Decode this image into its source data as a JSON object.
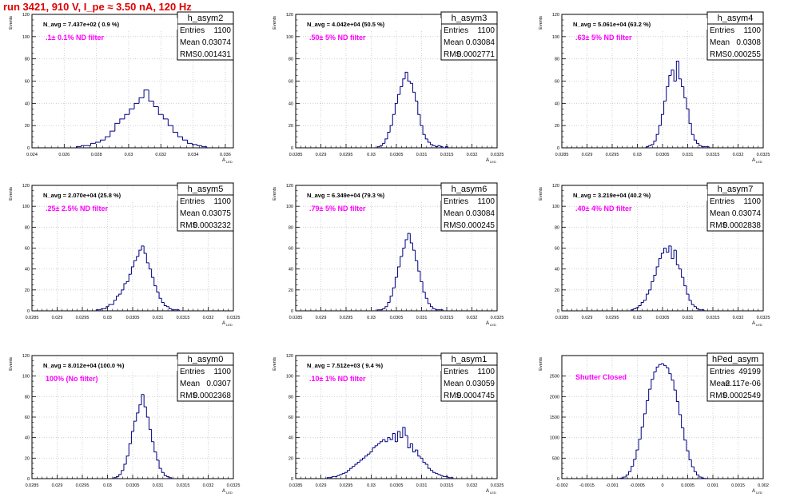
{
  "title": "run 3421,   910 V, I_pe ≈ 3.50 nA, 120 Hz",
  "colors": {
    "hist": "#000080",
    "title": "#e00000",
    "filter_text": "#ff00ff",
    "grid": "#c8c8c8"
  },
  "chart_data": [
    {
      "type": "bar",
      "name": "h_asym2",
      "nav": "N_avg = 7.437e+02 ( 0.9 %)",
      "filter": ".1± 0.1% ND filter",
      "stats": {
        "entries": "1100",
        "mean": "0.03074",
        "rms": "0.001431"
      },
      "xlabel": "A_LED",
      "ylabel": "Events",
      "xlim": [
        0.024,
        0.0365
      ],
      "ylim": [
        0,
        120
      ],
      "xticks": [
        0.024,
        0.026,
        0.028,
        0.03,
        0.032,
        0.034,
        0.036
      ],
      "xtick_labels": [
        "0.024",
        "0.026",
        "0.028",
        "0.03",
        "0.032",
        "0.034",
        "0.036"
      ],
      "yticks": [
        0,
        20,
        40,
        60,
        80,
        100,
        120
      ],
      "x": [
        0.0269,
        0.0272,
        0.0275,
        0.0278,
        0.0281,
        0.0284,
        0.0287,
        0.029,
        0.0293,
        0.0296,
        0.0299,
        0.0302,
        0.0305,
        0.0308,
        0.0311,
        0.0314,
        0.0317,
        0.032,
        0.0323,
        0.0326,
        0.0329,
        0.0332,
        0.0335,
        0.0338,
        0.0341,
        0.0344,
        0.0347
      ],
      "values": [
        1,
        2,
        2,
        4,
        5,
        7,
        10,
        15,
        22,
        26,
        30,
        35,
        40,
        45,
        52,
        42,
        37,
        30,
        26,
        20,
        14,
        10,
        7,
        4,
        3,
        2,
        1
      ]
    },
    {
      "type": "bar",
      "name": "h_asym3",
      "nav": "N_avg = 4.042e+04 (50.5 %)",
      "filter": ".50± 5% ND filter",
      "stats": {
        "entries": "1100",
        "mean": "0.03084",
        "rms": "0.0002771"
      },
      "xlabel": "A_LED",
      "ylabel": "Events",
      "xlim": [
        0.0285,
        0.0325
      ],
      "ylim": [
        0,
        120
      ],
      "xticks": [
        0.0285,
        0.029,
        0.0295,
        0.03,
        0.0305,
        0.031,
        0.0315,
        0.032,
        0.0325
      ],
      "xtick_labels": [
        "0.0285",
        "0.029",
        "0.0295",
        "0.03",
        "0.0305",
        "0.031",
        "0.0315",
        "0.032",
        "0.0325"
      ],
      "yticks": [
        0,
        20,
        40,
        60,
        80,
        100,
        120
      ],
      "x": [
        0.03015,
        0.0302,
        0.03025,
        0.0303,
        0.03035,
        0.0304,
        0.03045,
        0.0305,
        0.03055,
        0.0306,
        0.03065,
        0.0307,
        0.03075,
        0.0308,
        0.03085,
        0.0309,
        0.03095,
        0.031,
        0.03105,
        0.0311,
        0.03115,
        0.0312,
        0.03125,
        0.0313,
        0.03135,
        0.0314,
        0.03145,
        0.0315
      ],
      "values": [
        1,
        2,
        4,
        8,
        14,
        20,
        30,
        40,
        48,
        55,
        62,
        68,
        60,
        58,
        50,
        42,
        30,
        20,
        12,
        8,
        5,
        3,
        2,
        1,
        2,
        1,
        0,
        1
      ]
    },
    {
      "type": "bar",
      "name": "h_asym4",
      "nav": "N_avg = 5.061e+04 (63.2 %)",
      "filter": ".63± 5% ND filter",
      "stats": {
        "entries": "1100",
        "mean": "0.0308",
        "rms": "0.000255"
      },
      "xlabel": "A_LED",
      "ylabel": "Events",
      "xlim": [
        0.0285,
        0.0325
      ],
      "ylim": [
        0,
        120
      ],
      "xticks": [
        0.0285,
        0.029,
        0.0295,
        0.03,
        0.0305,
        0.031,
        0.0315,
        0.032,
        0.0325
      ],
      "xtick_labels": [
        "0.0285",
        "0.029",
        "0.0295",
        "0.03",
        "0.0305",
        "0.031",
        "0.0315",
        "0.032",
        "0.0325"
      ],
      "yticks": [
        0,
        20,
        40,
        60,
        80,
        100,
        120
      ],
      "x": [
        0.0302,
        0.03025,
        0.0303,
        0.03035,
        0.0304,
        0.03045,
        0.0305,
        0.03055,
        0.0306,
        0.03065,
        0.0307,
        0.03075,
        0.0308,
        0.03085,
        0.0309,
        0.03095,
        0.031,
        0.03105,
        0.0311,
        0.03115,
        0.0312,
        0.03125,
        0.0313,
        0.03135,
        0.0314
      ],
      "values": [
        1,
        2,
        3,
        6,
        12,
        20,
        30,
        42,
        55,
        65,
        70,
        60,
        78,
        62,
        55,
        45,
        35,
        22,
        12,
        7,
        4,
        2,
        1,
        1,
        1
      ]
    },
    {
      "type": "bar",
      "name": "h_asym5",
      "nav": "N_avg = 2.070e+04 (25.8 %)",
      "filter": ".25± 2.5% ND filter",
      "stats": {
        "entries": "1100",
        "mean": "0.03075",
        "rms": "0.0003232"
      },
      "xlabel": "A_LED",
      "ylabel": "Events",
      "xlim": [
        0.0285,
        0.0325
      ],
      "ylim": [
        0,
        120
      ],
      "xticks": [
        0.0285,
        0.029,
        0.0295,
        0.03,
        0.0305,
        0.031,
        0.0315,
        0.032,
        0.0325
      ],
      "xtick_labels": [
        "0.0285",
        "0.029",
        "0.0295",
        "0.03",
        "0.0305",
        "0.031",
        "0.0315",
        "0.032",
        "0.0325"
      ],
      "yticks": [
        0,
        20,
        40,
        60,
        80,
        100,
        120
      ],
      "x": [
        0.0298,
        0.02985,
        0.0299,
        0.02995,
        0.03,
        0.03005,
        0.0301,
        0.03015,
        0.0302,
        0.03025,
        0.0303,
        0.03035,
        0.0304,
        0.03045,
        0.0305,
        0.03055,
        0.0306,
        0.03065,
        0.0307,
        0.03075,
        0.0308,
        0.03085,
        0.0309,
        0.03095,
        0.031,
        0.03105,
        0.0311,
        0.03115,
        0.0312,
        0.03125,
        0.0313,
        0.03135,
        0.0314,
        0.03145
      ],
      "values": [
        1,
        1,
        2,
        2,
        4,
        6,
        6,
        10,
        14,
        16,
        20,
        26,
        28,
        35,
        42,
        48,
        52,
        58,
        62,
        55,
        46,
        40,
        32,
        24,
        18,
        12,
        8,
        5,
        4,
        2,
        1,
        1,
        1,
        0
      ]
    },
    {
      "type": "bar",
      "name": "h_asym6",
      "nav": "N_avg = 6.349e+04 (79.3 %)",
      "filter": ".79± 5% ND filter",
      "stats": {
        "entries": "1100",
        "mean": "0.03084",
        "rms": "0.000245"
      },
      "xlabel": "A_LED",
      "ylabel": "Events",
      "xlim": [
        0.0285,
        0.0325
      ],
      "ylim": [
        0,
        120
      ],
      "xticks": [
        0.0285,
        0.029,
        0.0295,
        0.03,
        0.0305,
        0.031,
        0.0315,
        0.032,
        0.0325
      ],
      "xtick_labels": [
        "0.0285",
        "0.029",
        "0.0295",
        "0.03",
        "0.0305",
        "0.031",
        "0.0315",
        "0.032",
        "0.0325"
      ],
      "yticks": [
        0,
        20,
        40,
        60,
        80,
        100,
        120
      ],
      "x": [
        0.03015,
        0.0302,
        0.03025,
        0.0303,
        0.03035,
        0.0304,
        0.03045,
        0.0305,
        0.03055,
        0.0306,
        0.03065,
        0.0307,
        0.03075,
        0.0308,
        0.03085,
        0.0309,
        0.03095,
        0.031,
        0.03105,
        0.0311,
        0.03115,
        0.0312,
        0.03125,
        0.0313,
        0.03135,
        0.0314
      ],
      "values": [
        1,
        1,
        2,
        4,
        8,
        14,
        22,
        32,
        42,
        52,
        60,
        68,
        74,
        65,
        58,
        48,
        38,
        28,
        18,
        12,
        7,
        4,
        2,
        1,
        1,
        1
      ]
    },
    {
      "type": "bar",
      "name": "h_asym7",
      "nav": "N_avg = 3.219e+04 (40.2 %)",
      "filter": ".40± 4% ND filter",
      "stats": {
        "entries": "1100",
        "mean": "0.03074",
        "rms": "0.0002838"
      },
      "xlabel": "A_LED",
      "ylabel": "Events",
      "xlim": [
        0.0285,
        0.0325
      ],
      "ylim": [
        0,
        120
      ],
      "xticks": [
        0.0285,
        0.029,
        0.0295,
        0.03,
        0.0305,
        0.031,
        0.0315,
        0.032,
        0.0325
      ],
      "xtick_labels": [
        "0.0285",
        "0.029",
        "0.0295",
        "0.03",
        "0.0305",
        "0.031",
        "0.0315",
        "0.032",
        "0.0325"
      ],
      "yticks": [
        0,
        20,
        40,
        60,
        80,
        100,
        120
      ],
      "x": [
        0.0299,
        0.02995,
        0.03,
        0.03005,
        0.0301,
        0.03015,
        0.0302,
        0.03025,
        0.0303,
        0.03035,
        0.0304,
        0.03045,
        0.0305,
        0.03055,
        0.0306,
        0.03065,
        0.0307,
        0.03075,
        0.0308,
        0.03085,
        0.0309,
        0.03095,
        0.031,
        0.03105,
        0.0311,
        0.03115,
        0.0312,
        0.03125,
        0.0313
      ],
      "values": [
        1,
        2,
        3,
        5,
        8,
        10,
        16,
        20,
        28,
        34,
        42,
        50,
        55,
        60,
        56,
        62,
        50,
        58,
        44,
        40,
        32,
        24,
        16,
        10,
        6,
        4,
        2,
        1,
        1
      ]
    },
    {
      "type": "bar",
      "name": "h_asym0",
      "nav": "N_avg = 8.012e+04 (100.0 %)",
      "filter": "100% (No filter)",
      "stats": {
        "entries": "1100",
        "mean": "0.0307",
        "rms": "0.0002368"
      },
      "xlabel": "A_LED",
      "ylabel": "Events",
      "xlim": [
        0.0285,
        0.0325
      ],
      "ylim": [
        0,
        120
      ],
      "xticks": [
        0.0285,
        0.029,
        0.0295,
        0.03,
        0.0305,
        0.031,
        0.0315,
        0.032,
        0.0325
      ],
      "xtick_labels": [
        "0.0285",
        "0.029",
        "0.0295",
        "0.03",
        "0.0305",
        "0.031",
        "0.0315",
        "0.032",
        "0.0325"
      ],
      "yticks": [
        0,
        20,
        40,
        60,
        80,
        100,
        120
      ],
      "x": [
        0.03015,
        0.0302,
        0.03025,
        0.0303,
        0.03035,
        0.0304,
        0.03045,
        0.0305,
        0.03055,
        0.0306,
        0.03065,
        0.0307,
        0.03075,
        0.0308,
        0.03085,
        0.0309,
        0.03095,
        0.031,
        0.03105,
        0.0311,
        0.03115,
        0.0312,
        0.03125
      ],
      "values": [
        1,
        2,
        4,
        8,
        14,
        22,
        34,
        46,
        56,
        64,
        72,
        82,
        70,
        60,
        48,
        36,
        26,
        18,
        10,
        6,
        3,
        2,
        1
      ]
    },
    {
      "type": "bar",
      "name": "h_asym1",
      "nav": "N_avg = 7.512e+03 ( 9.4 %)",
      "filter": ".10± 1% ND filter",
      "stats": {
        "entries": "1100",
        "mean": "0.03059",
        "rms": "0.0004745"
      },
      "xlabel": "A_LED",
      "ylabel": "Events",
      "xlim": [
        0.0285,
        0.0325
      ],
      "ylim": [
        0,
        120
      ],
      "xticks": [
        0.0285,
        0.029,
        0.0295,
        0.03,
        0.0305,
        0.031,
        0.0315,
        0.032,
        0.0325
      ],
      "xtick_labels": [
        "0.0285",
        "0.029",
        "0.0295",
        "0.03",
        "0.0305",
        "0.031",
        "0.0315",
        "0.032",
        "0.0325"
      ],
      "yticks": [
        0,
        20,
        40,
        60,
        80,
        100,
        120
      ],
      "x": [
        0.02915,
        0.0292,
        0.02925,
        0.0293,
        0.02935,
        0.0294,
        0.02945,
        0.0295,
        0.02955,
        0.0296,
        0.02965,
        0.0297,
        0.02975,
        0.0298,
        0.02985,
        0.0299,
        0.02995,
        0.03,
        0.03005,
        0.0301,
        0.03015,
        0.0302,
        0.03025,
        0.0303,
        0.03035,
        0.0304,
        0.03045,
        0.0305,
        0.03055,
        0.0306,
        0.03065,
        0.0307,
        0.03075,
        0.0308,
        0.03085,
        0.0309,
        0.03095,
        0.031,
        0.03105,
        0.0311,
        0.03115,
        0.0312,
        0.03125,
        0.0313,
        0.03135,
        0.0314,
        0.03145,
        0.0315,
        0.03155,
        0.0316
      ],
      "values": [
        1,
        1,
        2,
        2,
        3,
        4,
        5,
        6,
        8,
        10,
        12,
        14,
        16,
        18,
        20,
        22,
        24,
        26,
        30,
        32,
        34,
        36,
        38,
        36,
        40,
        38,
        44,
        36,
        46,
        40,
        50,
        42,
        30,
        34,
        26,
        28,
        22,
        20,
        16,
        14,
        10,
        8,
        6,
        5,
        4,
        3,
        2,
        2,
        1,
        1
      ]
    },
    {
      "type": "bar",
      "name": "hPed_asym",
      "nav": "",
      "filter": "Shutter Closed",
      "stats": {
        "entries": "49199",
        "mean": "-2.117e-06",
        "rms": "0.0002549"
      },
      "xlabel": "A_LED",
      "ylabel": "Events",
      "xlim": [
        -0.002,
        0.002
      ],
      "ylim": [
        0,
        3000
      ],
      "xticks": [
        -0.002,
        -0.0015,
        -0.001,
        -0.0005,
        0,
        0.0005,
        0.001,
        0.0015,
        0.002
      ],
      "xtick_labels": [
        "-0.002",
        "-0.0015",
        "-0.001",
        "-0.0005",
        "0",
        "0.0005",
        "0.001",
        "0.0015",
        "0.002"
      ],
      "yticks": [
        0,
        500,
        1000,
        1500,
        2000,
        2500
      ],
      "x": [
        -0.00085,
        -0.0008,
        -0.00075,
        -0.0007,
        -0.00065,
        -0.0006,
        -0.00055,
        -0.0005,
        -0.00045,
        -0.0004,
        -0.00035,
        -0.0003,
        -0.00025,
        -0.0002,
        -0.00015,
        -0.0001,
        -5e-05,
        0,
        5e-05,
        0.0001,
        0.00015,
        0.0002,
        0.00025,
        0.0003,
        0.00035,
        0.0004,
        0.00045,
        0.0005,
        0.00055,
        0.0006,
        0.00065,
        0.0007,
        0.00075,
        0.0008,
        0.00085
      ],
      "values": [
        5,
        15,
        40,
        90,
        170,
        300,
        470,
        700,
        960,
        1260,
        1580,
        1900,
        2180,
        2420,
        2600,
        2720,
        2780,
        2800,
        2760,
        2700,
        2560,
        2400,
        2160,
        1880,
        1560,
        1240,
        940,
        680,
        460,
        290,
        170,
        90,
        40,
        15,
        5
      ]
    }
  ]
}
